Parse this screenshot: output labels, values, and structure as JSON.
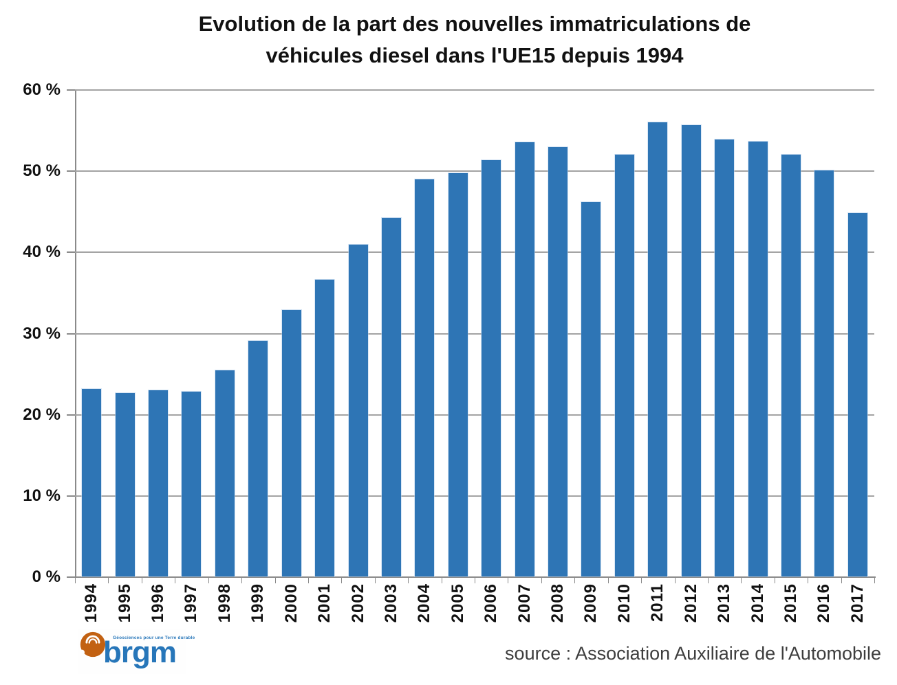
{
  "title": {
    "line1": "Evolution de la part des nouvelles immatriculations de",
    "line2": "véhicules diesel dans l'UE15 depuis 1994"
  },
  "source": {
    "text": "source : Association Auxiliaire de l'Automobile"
  },
  "logo": {
    "name": "brgm",
    "tagline": "Géosciences pour une Terre durable",
    "orange": "#c26112",
    "blue": "#2776b9"
  },
  "chart_data": {
    "type": "bar",
    "title": "Evolution de la part des nouvelles immatriculations de véhicules diesel dans l'UE15 depuis 1994",
    "categories": [
      "1994",
      "1995",
      "1996",
      "1997",
      "1998",
      "1999",
      "2000",
      "2001",
      "2002",
      "2003",
      "2004",
      "2005",
      "2006",
      "2007",
      "2008",
      "2009",
      "2010",
      "2011",
      "2012",
      "2013",
      "2014",
      "2015",
      "2016",
      "2017"
    ],
    "values": [
      23.1,
      22.6,
      22.9,
      22.8,
      25.4,
      29.0,
      32.8,
      36.6,
      40.9,
      44.2,
      48.9,
      49.7,
      51.3,
      53.5,
      52.9,
      46.1,
      52.0,
      55.9,
      55.6,
      53.8,
      53.6,
      52.0,
      50.0,
      44.8
    ],
    "xlabel": "",
    "ylabel": "",
    "yticks": [
      0,
      10,
      20,
      30,
      40,
      50,
      60
    ],
    "ytick_suffix": " %",
    "ylim": [
      0,
      60
    ],
    "grid": true,
    "legend_position": "none",
    "bar_color": "#2e75b5",
    "gridline_color": "#a3a3a3",
    "axis_color": "#8a8a8a",
    "source": "source : Association Auxiliaire de l'Automobile"
  }
}
